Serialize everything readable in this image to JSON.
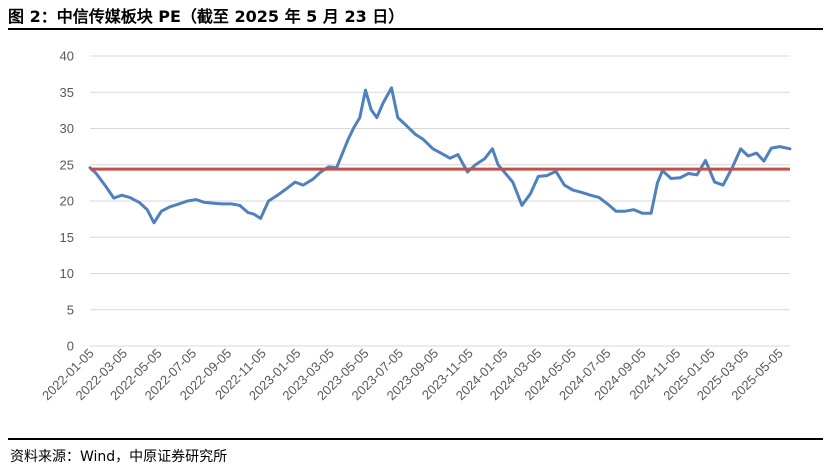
{
  "header": {
    "title": "图 2：中信传媒板块 PE（截至 2025 年 5 月 23 日）"
  },
  "footer": {
    "source": "资料来源：Wind，中原证券研究所"
  },
  "chart_data": {
    "type": "line",
    "title": "图 2：中信传媒板块 PE（截至 2025 年 5 月 23 日）",
    "xlabel": "",
    "ylabel": "",
    "ylim": [
      0,
      40
    ],
    "yticks": [
      0,
      5,
      10,
      15,
      20,
      25,
      30,
      35,
      40
    ],
    "xlim": [
      "2022-01-04",
      "2025-05-23"
    ],
    "xticks": [
      "2022-01-05",
      "2022-03-05",
      "2022-05-05",
      "2022-07-05",
      "2022-09-05",
      "2022-11-05",
      "2023-01-05",
      "2023-03-05",
      "2023-05-05",
      "2023-07-05",
      "2023-09-05",
      "2023-11-05",
      "2024-01-05",
      "2024-03-05",
      "2024-05-05",
      "2024-07-05",
      "2024-09-05",
      "2024-11-05",
      "2025-01-05",
      "2025-03-05",
      "2025-05-05"
    ],
    "grid": true,
    "legend": "none",
    "colors": {
      "pe": "#4f81bd",
      "mean": "#c0504d",
      "grid": "#d9d9d9"
    },
    "series": [
      {
        "x": [
          "2022-01-04",
          "2022-01-15",
          "2022-02-01",
          "2022-02-15",
          "2022-03-01",
          "2022-03-15",
          "2022-04-01",
          "2022-04-15",
          "2022-04-27",
          "2022-05-10",
          "2022-05-25",
          "2022-06-10",
          "2022-06-25",
          "2022-07-10",
          "2022-07-25",
          "2022-08-10",
          "2022-08-25",
          "2022-09-10",
          "2022-09-25",
          "2022-10-10",
          "2022-10-20",
          "2022-11-01",
          "2022-11-15",
          "2022-12-01",
          "2022-12-15",
          "2023-01-01",
          "2023-01-15",
          "2023-02-01",
          "2023-02-15",
          "2023-03-01",
          "2023-03-15",
          "2023-03-25",
          "2023-04-05",
          "2023-04-15",
          "2023-04-25",
          "2023-05-05",
          "2023-05-15",
          "2023-05-25",
          "2023-06-05",
          "2023-06-20",
          "2023-07-01",
          "2023-07-15",
          "2023-08-01",
          "2023-08-15",
          "2023-09-01",
          "2023-09-15",
          "2023-10-01",
          "2023-10-15",
          "2023-11-01",
          "2023-11-15",
          "2023-12-01",
          "2023-12-15",
          "2023-12-25",
          "2024-01-05",
          "2024-01-20",
          "2024-02-05",
          "2024-02-20",
          "2024-03-05",
          "2024-03-20",
          "2024-04-05",
          "2024-04-20",
          "2024-05-05",
          "2024-05-20",
          "2024-06-05",
          "2024-06-20",
          "2024-07-05",
          "2024-07-20",
          "2024-08-05",
          "2024-08-20",
          "2024-09-05",
          "2024-09-20",
          "2024-10-01",
          "2024-10-10",
          "2024-10-25",
          "2024-11-10",
          "2024-11-25",
          "2024-12-10",
          "2024-12-25",
          "2025-01-10",
          "2025-01-25",
          "2025-02-10",
          "2025-02-25",
          "2025-03-10",
          "2025-03-25",
          "2025-04-07",
          "2025-04-20",
          "2025-05-05",
          "2025-05-23"
        ],
        "values": [
          24.6,
          23.8,
          22.0,
          20.4,
          20.8,
          20.5,
          19.8,
          18.8,
          17.0,
          18.6,
          19.2,
          19.6,
          20.0,
          20.2,
          19.8,
          19.7,
          19.6,
          19.6,
          19.4,
          18.4,
          18.2,
          17.6,
          20.0,
          20.8,
          21.6,
          22.6,
          22.2,
          23.0,
          24.0,
          24.7,
          24.6,
          26.5,
          28.6,
          30.2,
          31.5,
          35.3,
          32.6,
          31.5,
          33.5,
          35.6,
          31.5,
          30.5,
          29.2,
          28.5,
          27.2,
          26.6,
          25.9,
          26.4,
          24.0,
          25.0,
          25.8,
          27.2,
          25.0,
          24.0,
          22.6,
          19.4,
          21.0,
          23.4,
          23.5,
          24.1,
          22.2,
          21.5,
          21.2,
          20.8,
          20.5,
          19.6,
          18.6,
          18.6,
          18.8,
          18.3,
          18.3,
          22.5,
          24.2,
          23.1,
          23.2,
          23.8,
          23.6,
          25.6,
          22.6,
          22.2,
          24.6,
          27.2,
          26.2,
          26.6,
          25.5,
          27.3,
          27.5,
          27.2
        ]
      },
      {
        "x": [
          "2022-01-04",
          "2025-05-23"
        ],
        "values": [
          24.4,
          24.4
        ]
      }
    ]
  }
}
